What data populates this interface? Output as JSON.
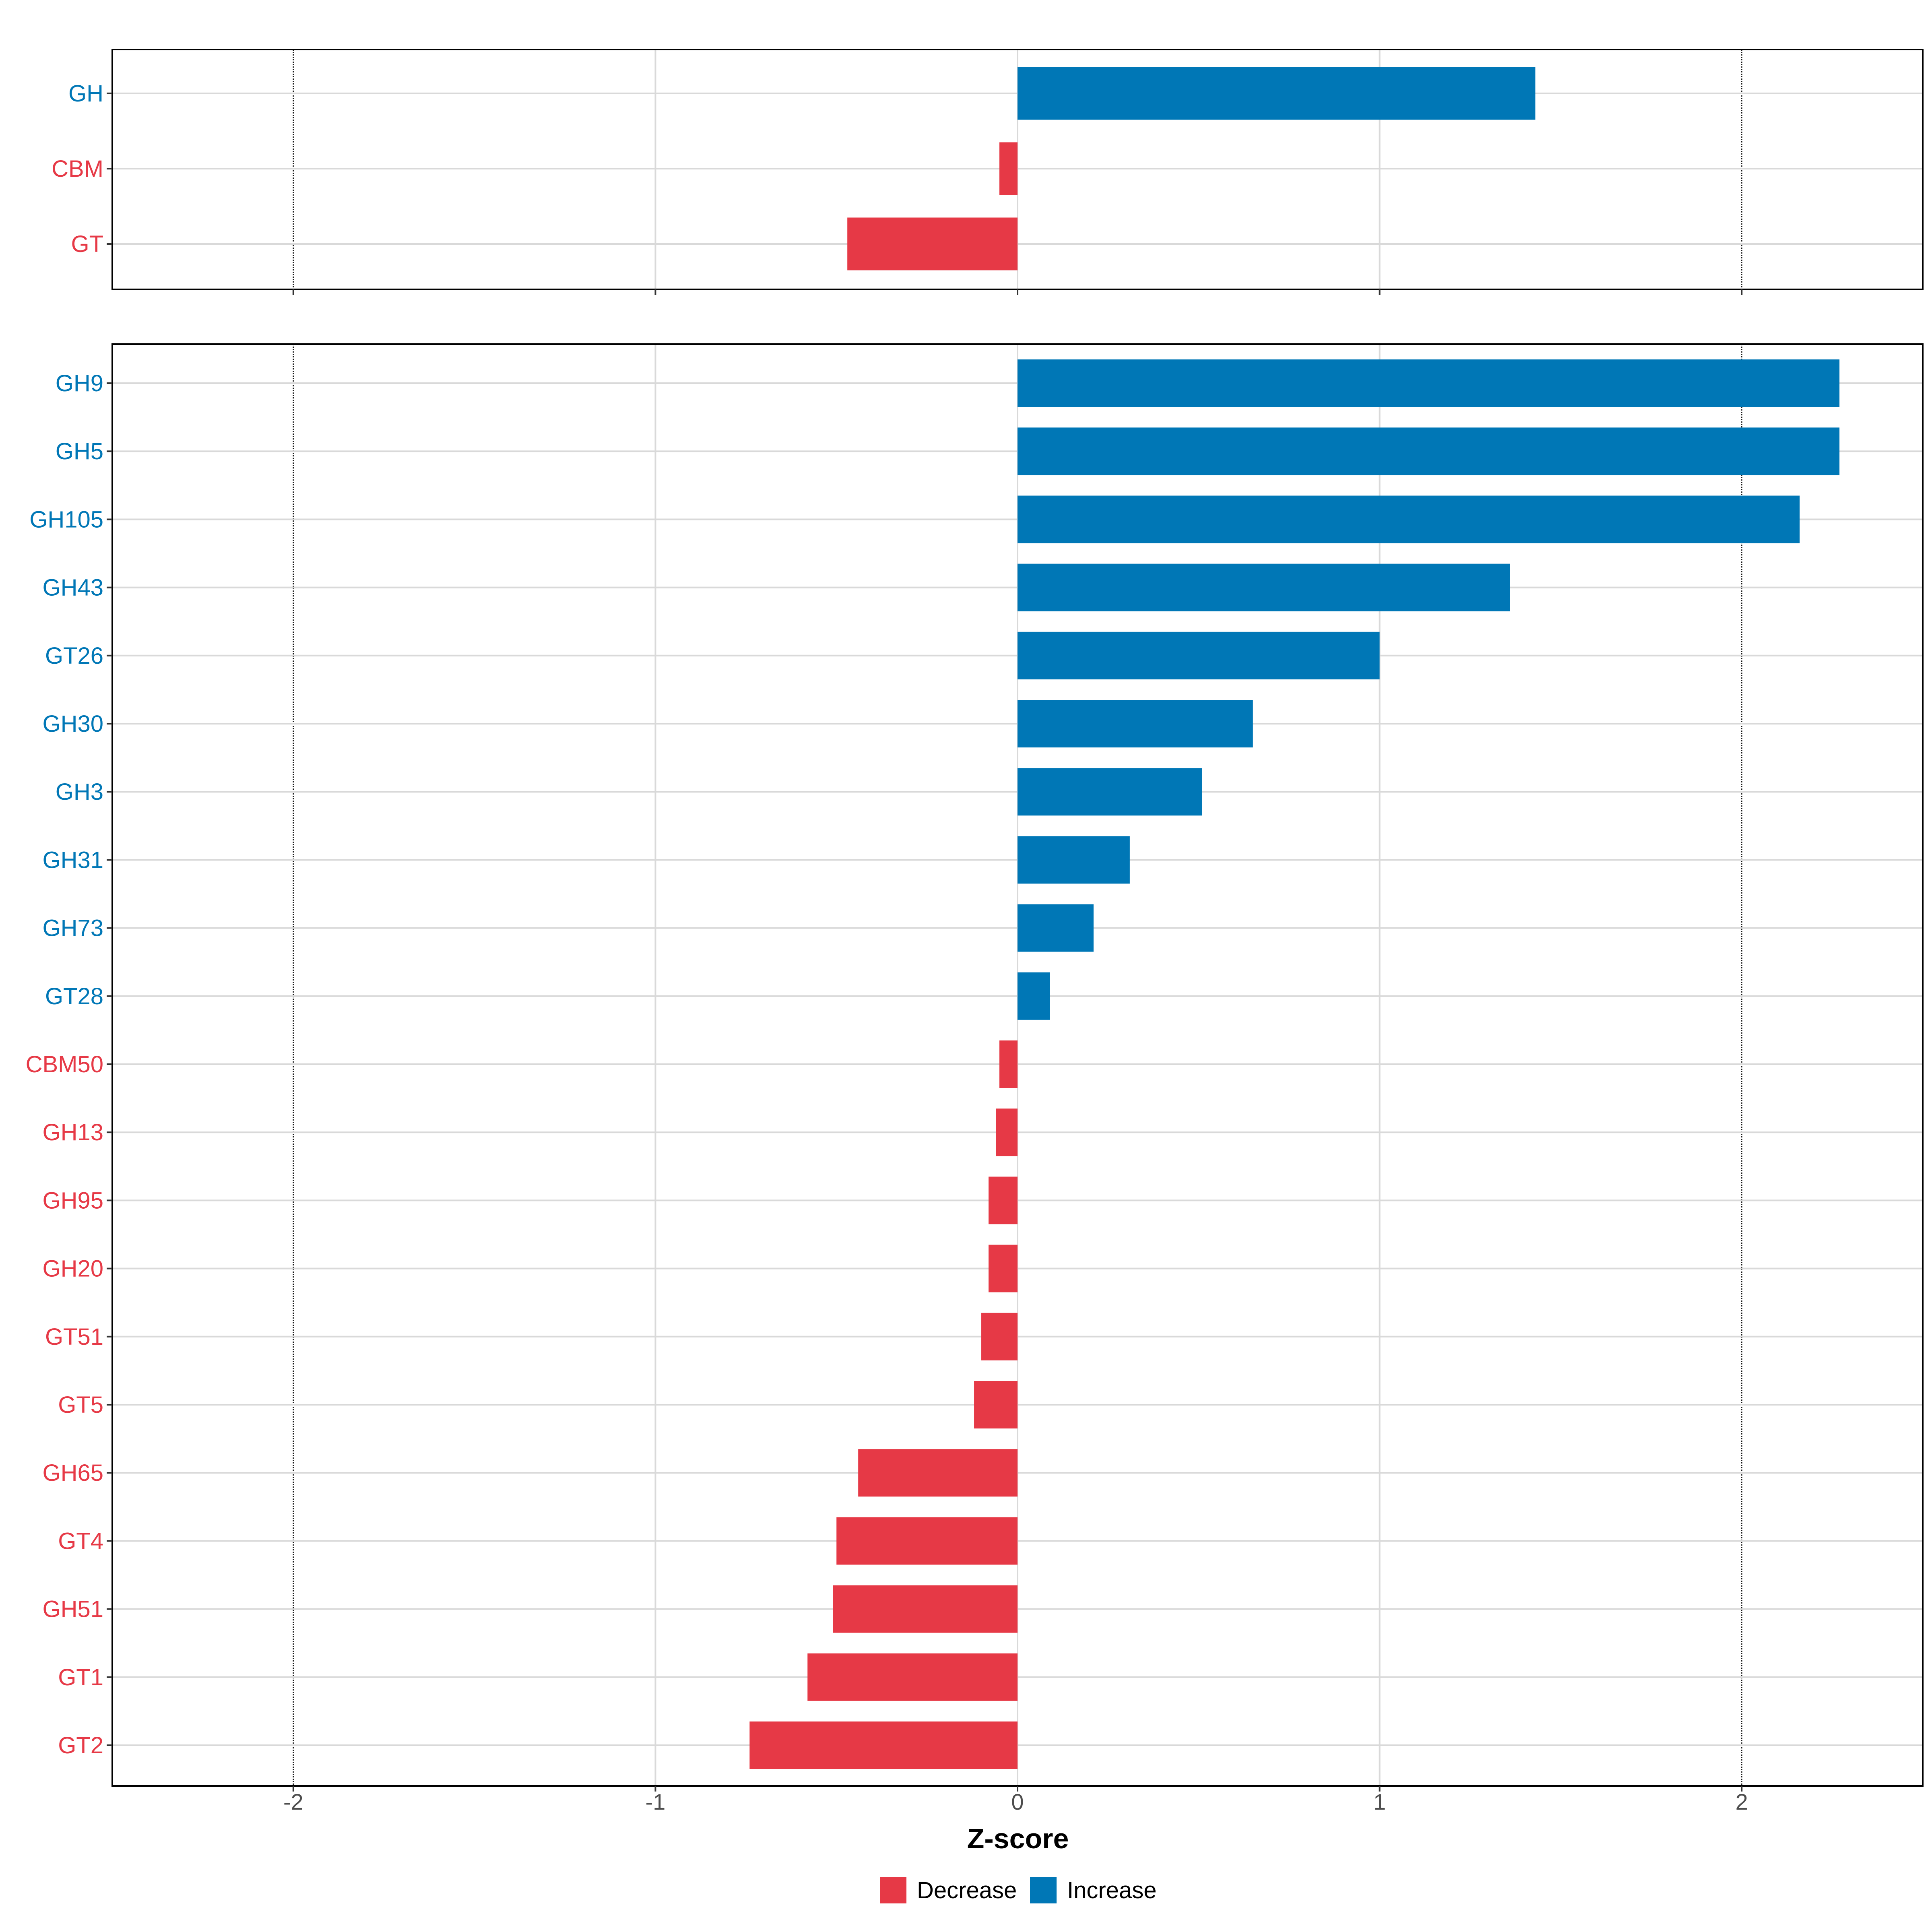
{
  "chart_data": {
    "type": "bar",
    "orientation": "horizontal",
    "xlabel": "Z-score",
    "xlim": [
      -2.5,
      2.5
    ],
    "xticks": [
      -2,
      -1,
      0,
      1,
      2
    ],
    "xtick_labels": [
      "-2",
      "-1",
      "0",
      "1",
      "2"
    ],
    "reference_lines": [
      -2,
      2
    ],
    "grid": true,
    "colors": {
      "Decrease": "#e63946",
      "Increase": "#0077b6"
    },
    "panels": [
      {
        "categories": [
          "GH",
          "CBM",
          "GT"
        ],
        "values": [
          1.43,
          -0.05,
          -0.47
        ]
      },
      {
        "categories": [
          "GH9",
          "GH5",
          "GH105",
          "GH43",
          "GT26",
          "GH30",
          "GH3",
          "GH31",
          "GH73",
          "GT28",
          "CBM50",
          "GH13",
          "GH95",
          "GH20",
          "GT51",
          "GT5",
          "GH65",
          "GT4",
          "GH51",
          "GT1",
          "GT2"
        ],
        "values": [
          2.27,
          2.27,
          2.16,
          1.36,
          1.0,
          0.65,
          0.51,
          0.31,
          0.21,
          0.09,
          -0.05,
          -0.06,
          -0.08,
          -0.08,
          -0.1,
          -0.12,
          -0.44,
          -0.5,
          -0.51,
          -0.58,
          -0.74
        ]
      }
    ],
    "legend": {
      "position": "bottom",
      "entries": [
        "Decrease",
        "Increase"
      ]
    }
  }
}
